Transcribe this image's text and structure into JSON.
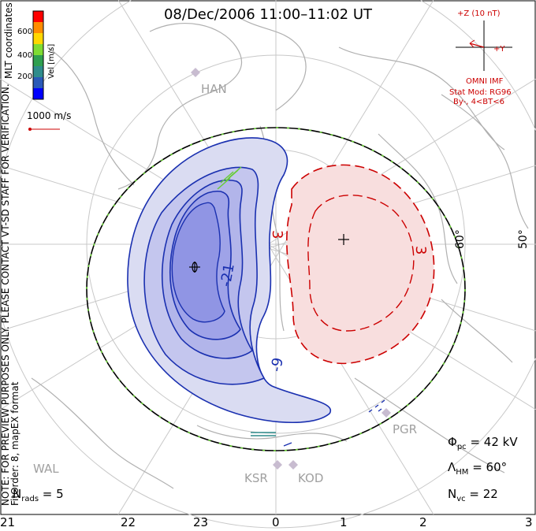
{
  "title": "08/Dec/2006 11:00–11:02 UT",
  "note_line1": "NOTE: FOR PREVIEW PURPOSES ONLY. PLEASE CONTACT VT-SD STAFF FOR VERIFICATION.",
  "note_line2": "FitOrder: 8, mapEX format",
  "coord_label": "MLT coordinates",
  "colorbar": {
    "label": "Vel [m/s]",
    "ticks": [
      "600",
      "400",
      "200"
    ],
    "colors": [
      "#ff0000",
      "#ff8c00",
      "#ffd700",
      "#7fdc33",
      "#2fa050",
      "#2f8c8c",
      "#2a5ab8",
      "#0000ff"
    ]
  },
  "velocity_scale": "1000 m/s",
  "imf": {
    "z_label": "+Z (10 nT)",
    "y_label": "+Y",
    "source": "OMNI IMF",
    "stat_mod": "Stat Mod: RG96",
    "bin": "By-, 4<BT<6"
  },
  "latitude_labels": [
    "60°",
    "50°"
  ],
  "contours": {
    "negative_labels": [
      "-21",
      "-9"
    ],
    "positive_labels": [
      "3",
      "3"
    ]
  },
  "stations": [
    "HAN",
    "PGR",
    "KOD",
    "KSR",
    "WAL"
  ],
  "stats": {
    "phi_pc": "42 kV",
    "lambda_hm": "60°",
    "n_vc": "22",
    "n_rads": "5"
  },
  "x_ticks": [
    "21",
    "22",
    "23",
    "0",
    "1",
    "2",
    "3"
  ],
  "colors": {
    "negative": "#1a30b0",
    "negative_fill": "#dadcf2",
    "negative_core": "#9fa3e8",
    "positive": "#cc0000",
    "positive_fill": "#f8dede",
    "boundary_green": "#66cc33",
    "grid": "#c8c8c8",
    "coast": "#b0b0b0"
  }
}
